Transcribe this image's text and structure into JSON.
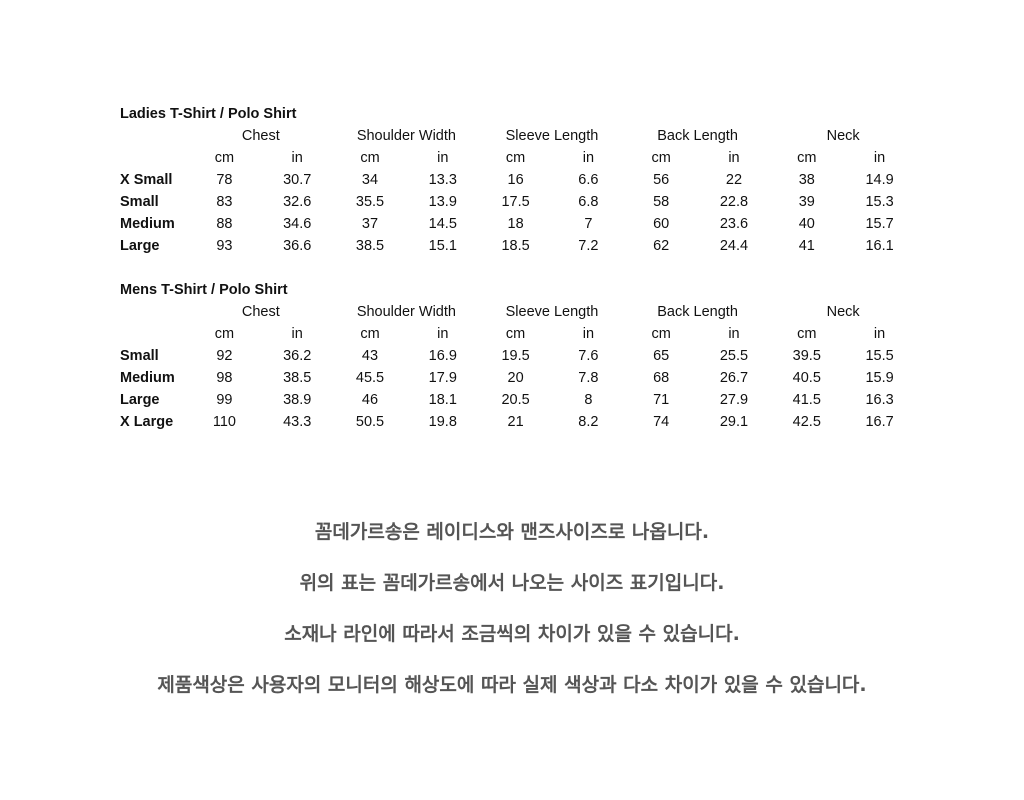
{
  "ladies": {
    "title": "Ladies T-Shirt / Polo Shirt",
    "measures": [
      "Chest",
      "Shoulder Width",
      "Sleeve Length",
      "Back Length",
      "Neck"
    ],
    "units": [
      "cm",
      "in",
      "cm",
      "in",
      "cm",
      "in",
      "cm",
      "in",
      "cm",
      "in"
    ],
    "rows": [
      {
        "size": "X Small",
        "values": [
          "78",
          "30.7",
          "34",
          "13.3",
          "16",
          "6.6",
          "56",
          "22",
          "38",
          "14.9"
        ]
      },
      {
        "size": "Small",
        "values": [
          "83",
          "32.6",
          "35.5",
          "13.9",
          "17.5",
          "6.8",
          "58",
          "22.8",
          "39",
          "15.3"
        ]
      },
      {
        "size": "Medium",
        "values": [
          "88",
          "34.6",
          "37",
          "14.5",
          "18",
          "7",
          "60",
          "23.6",
          "40",
          "15.7"
        ]
      },
      {
        "size": "Large",
        "values": [
          "93",
          "36.6",
          "38.5",
          "15.1",
          "18.5",
          "7.2",
          "62",
          "24.4",
          "41",
          "16.1"
        ]
      }
    ]
  },
  "mens": {
    "title": "Mens T-Shirt / Polo Shirt",
    "measures": [
      "Chest",
      "Shoulder Width",
      "Sleeve Length",
      "Back Length",
      "Neck"
    ],
    "units": [
      "cm",
      "in",
      "cm",
      "in",
      "cm",
      "in",
      "cm",
      "in",
      "cm",
      "in"
    ],
    "rows": [
      {
        "size": "Small",
        "values": [
          "92",
          "36.2",
          "43",
          "16.9",
          "19.5",
          "7.6",
          "65",
          "25.5",
          "39.5",
          "15.5"
        ]
      },
      {
        "size": "Medium",
        "values": [
          "98",
          "38.5",
          "45.5",
          "17.9",
          "20",
          "7.8",
          "68",
          "26.7",
          "40.5",
          "15.9"
        ]
      },
      {
        "size": "Large",
        "values": [
          "99",
          "38.9",
          "46",
          "18.1",
          "20.5",
          "8",
          "71",
          "27.9",
          "41.5",
          "16.3"
        ]
      },
      {
        "size": "X Large",
        "values": [
          "110",
          "43.3",
          "50.5",
          "19.8",
          "21",
          "8.2",
          "74",
          "29.1",
          "42.5",
          "16.7"
        ]
      }
    ]
  },
  "notes": [
    "꼼데가르송은 레이디스와 맨즈사이즈로 나옵니다.",
    "위의 표는 꼼데가르송에서 나오는 사이즈 표기입니다.",
    "소재나 라인에 따라서 조금씩의 차이가 있을 수 있습니다.",
    "제품색상은 사용자의 모니터의 해상도에 따라 실제 색상과 다소 차이가 있을 수 있습니다."
  ]
}
